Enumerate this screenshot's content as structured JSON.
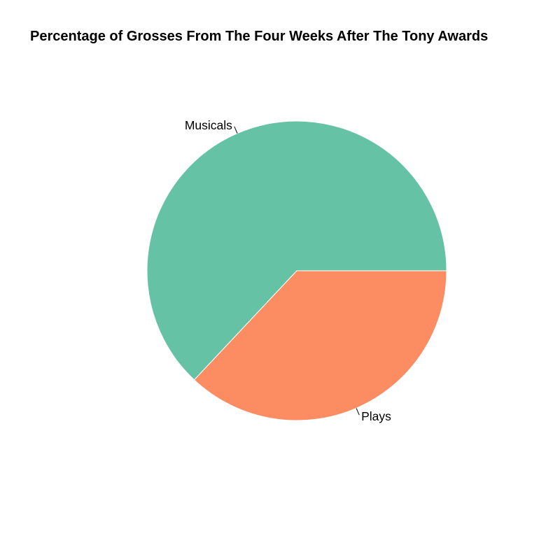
{
  "chart_data": {
    "type": "pie",
    "title": "Percentage of Grosses From The Four Weeks After The Tony Awards",
    "slices": [
      {
        "label": "Musicals",
        "value": 63,
        "color": "#66c2a5"
      },
      {
        "label": "Plays",
        "value": 37,
        "color": "#fc8d62"
      }
    ],
    "start_angle_deg": 0,
    "direction": "counterclockwise",
    "slice_border_color": "#ffffff",
    "legend": "none"
  }
}
